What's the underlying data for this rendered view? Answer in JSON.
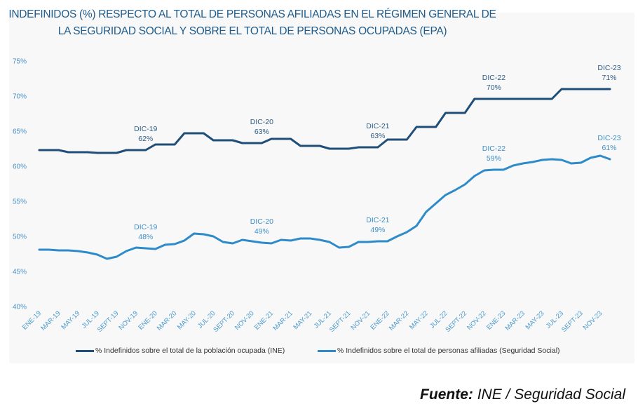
{
  "chart_data": {
    "type": "line",
    "title": "INDEFINIDOS (%) RESPECTO AL TOTAL DE PERSONAS AFILIADAS EN EL RÉGIMEN GENERAL DE LA SEGURIDAD SOCIAL Y SOBRE EL TOTAL DE PERSONAS OCUPADAS (EPA)",
    "title_lines": [
      "INDEFINIDOS (%) RESPECTO AL TOTAL DE PERSONAS AFILIADAS EN EL RÉGIMEN GENERAL DE",
      "LA SEGURIDAD SOCIAL Y SOBRE EL TOTAL DE PERSONAS OCUPADAS (EPA)"
    ],
    "xlabel": "",
    "ylabel": "",
    "ylim": [
      40,
      75
    ],
    "yticks": [
      40,
      45,
      50,
      55,
      60,
      65,
      70,
      75
    ],
    "ytick_format": "%",
    "grid": false,
    "legend_position": "bottom",
    "months": [
      "ENE-19",
      "FEB-19",
      "MAR-19",
      "ABR-19",
      "MAY-19",
      "JUN-19",
      "JUL-19",
      "AGO-19",
      "SEPT-19",
      "OCT-19",
      "NOV-19",
      "DIC-19",
      "ENE-20",
      "FEB-20",
      "MAR-20",
      "ABR-20",
      "MAY-20",
      "JUN-20",
      "JUL-20",
      "AGO-20",
      "SEPT-20",
      "OCT-20",
      "NOV-20",
      "DIC-20",
      "ENE-21",
      "FEB-21",
      "MAR-21",
      "ABR-21",
      "MAY-21",
      "JUN-21",
      "JUL-21",
      "AGO-21",
      "SEPT-21",
      "OCT-21",
      "NOV-21",
      "DIC-21",
      "ENE-22",
      "FEB-22",
      "MAR-22",
      "ABR-22",
      "MAY-22",
      "JUN-22",
      "JUL-22",
      "AGO-22",
      "SEPT-22",
      "OCT-22",
      "NOV-22",
      "DIC-22",
      "ENE-23",
      "FEB-23",
      "MAR-23",
      "ABR-23",
      "MAY-23",
      "JUN-23",
      "JUL-23",
      "AGO-23",
      "SEPT-23",
      "OCT-23",
      "NOV-23",
      "DIC-23"
    ],
    "tick_labels": [
      "ENE-19",
      "MAR-19",
      "MAY-19",
      "JUL-19",
      "SEPT-19",
      "NOV-19",
      "ENE-20",
      "MAR-20",
      "MAY-20",
      "JUL-20",
      "SEPT-20",
      "NOV-20",
      "ENE-21",
      "MAR-21",
      "MAY-21",
      "JUL-21",
      "SEPT-21",
      "NOV-21",
      "ENE-22",
      "MAR-22",
      "MAY-22",
      "JUL-22",
      "SEPT-22",
      "NOV-22",
      "ENE-23",
      "MAR-23",
      "MAY-23",
      "JUL-23",
      "SEPT-23",
      "NOV-23"
    ],
    "series": [
      {
        "name": "% Indefinidos sobre el total de la población ocupada (INE)",
        "color": "#1f4e79",
        "values": [
          62.3,
          62.3,
          62.3,
          62.0,
          62.0,
          62.0,
          61.9,
          61.9,
          61.9,
          62.3,
          62.3,
          62.3,
          63.1,
          63.1,
          63.1,
          64.7,
          64.7,
          64.7,
          63.7,
          63.7,
          63.7,
          63.3,
          63.3,
          63.3,
          63.9,
          63.9,
          63.9,
          62.9,
          62.9,
          62.9,
          62.5,
          62.5,
          62.5,
          62.7,
          62.7,
          62.7,
          63.8,
          63.8,
          63.8,
          65.6,
          65.6,
          65.6,
          67.6,
          67.6,
          67.6,
          69.6,
          69.6,
          69.6,
          69.6,
          69.6,
          69.6,
          69.6,
          69.6,
          69.6,
          71.0,
          71.0,
          71.0,
          71.0,
          71.0,
          71.0
        ]
      },
      {
        "name": "% Indefinidos sobre el total de personas afiliadas (Seguridad Social)",
        "color": "#2e8bc9",
        "values": [
          48.1,
          48.1,
          48.0,
          48.0,
          47.9,
          47.7,
          47.4,
          46.8,
          47.1,
          47.9,
          48.4,
          48.3,
          48.2,
          48.8,
          48.9,
          49.4,
          50.4,
          50.3,
          50.0,
          49.2,
          49.0,
          49.5,
          49.3,
          49.1,
          49.0,
          49.5,
          49.4,
          49.7,
          49.7,
          49.5,
          49.2,
          48.4,
          48.5,
          49.2,
          49.2,
          49.3,
          49.3,
          50.0,
          50.6,
          51.5,
          53.5,
          54.7,
          55.9,
          56.6,
          57.4,
          58.6,
          59.4,
          59.5,
          59.5,
          60.1,
          60.4,
          60.6,
          60.9,
          61.0,
          60.9,
          60.4,
          60.5,
          61.2,
          61.5,
          61.0
        ]
      }
    ],
    "annotations": [
      {
        "series": 0,
        "month": "DIC-19",
        "label": "DIC-19",
        "value_label": "62%"
      },
      {
        "series": 0,
        "month": "DIC-20",
        "label": "DIC-20",
        "value_label": "63%"
      },
      {
        "series": 0,
        "month": "DIC-21",
        "label": "DIC-21",
        "value_label": "63%"
      },
      {
        "series": 0,
        "month": "DIC-22",
        "label": "DIC-22",
        "value_label": "70%"
      },
      {
        "series": 0,
        "month": "DIC-23",
        "label": "DIC-23",
        "value_label": "71%"
      },
      {
        "series": 1,
        "month": "DIC-19",
        "label": "DIC-19",
        "value_label": "48%"
      },
      {
        "series": 1,
        "month": "DIC-20",
        "label": "DIC-20",
        "value_label": "49%"
      },
      {
        "series": 1,
        "month": "DIC-21",
        "label": "DIC-21",
        "value_label": "49%"
      },
      {
        "series": 1,
        "month": "DIC-22",
        "label": "DIC-22",
        "value_label": "59%"
      },
      {
        "series": 1,
        "month": "DIC-23",
        "label": "DIC-23",
        "value_label": "61%"
      }
    ]
  },
  "source": {
    "label": "Fuente:",
    "text": " INE / Seguridad Social"
  }
}
